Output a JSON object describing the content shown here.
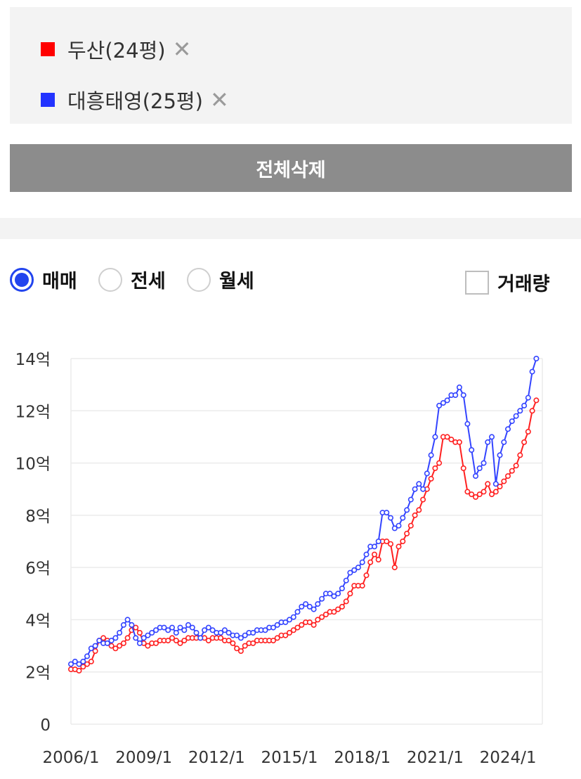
{
  "legend": {
    "items": [
      {
        "label": "두산(24평)",
        "color": "#ff0000",
        "remove_icon": "✕"
      },
      {
        "label": "대흥태영(25평)",
        "color": "#2233ff",
        "remove_icon": "✕"
      }
    ]
  },
  "delete_all_label": "전체삭제",
  "controls": {
    "radios": [
      {
        "label": "매매",
        "checked": true
      },
      {
        "label": "전세",
        "checked": false
      },
      {
        "label": "월세",
        "checked": false
      }
    ],
    "volume_checkbox": {
      "label": "거래량",
      "checked": false
    }
  },
  "chart_data": {
    "type": "line",
    "x_tick_labels": [
      "2006/1",
      "2009/1",
      "2012/1",
      "2015/1",
      "2018/1",
      "2021/1",
      "2024/1"
    ],
    "x_range": [
      "2006/1",
      "2025/6"
    ],
    "ylim": [
      0,
      14
    ],
    "y_ticks": [
      0,
      2,
      4,
      6,
      8,
      10,
      12,
      14
    ],
    "y_tick_labels": [
      "0",
      "2억",
      "4억",
      "6억",
      "8억",
      "10억",
      "12억",
      "14억"
    ],
    "grid": true,
    "series": [
      {
        "name": "두산(24평)",
        "color": "#ff2020",
        "points": [
          [
            "2006/1",
            2.1
          ],
          [
            "2006/3",
            2.1
          ],
          [
            "2006/5",
            2.05
          ],
          [
            "2006/7",
            2.2
          ],
          [
            "2006/9",
            2.3
          ],
          [
            "2006/11",
            2.4
          ],
          [
            "2007/1",
            2.8
          ],
          [
            "2007/3",
            3.2
          ],
          [
            "2007/5",
            3.3
          ],
          [
            "2007/7",
            3.2
          ],
          [
            "2007/9",
            3.0
          ],
          [
            "2007/11",
            2.9
          ],
          [
            "2008/1",
            3.0
          ],
          [
            "2008/3",
            3.1
          ],
          [
            "2008/5",
            3.3
          ],
          [
            "2008/7",
            3.6
          ],
          [
            "2008/9",
            3.7
          ],
          [
            "2008/11",
            3.5
          ],
          [
            "2009/1",
            3.1
          ],
          [
            "2009/3",
            3.0
          ],
          [
            "2009/5",
            3.1
          ],
          [
            "2009/7",
            3.1
          ],
          [
            "2009/9",
            3.2
          ],
          [
            "2009/11",
            3.2
          ],
          [
            "2010/1",
            3.2
          ],
          [
            "2010/3",
            3.3
          ],
          [
            "2010/5",
            3.2
          ],
          [
            "2010/7",
            3.1
          ],
          [
            "2010/9",
            3.2
          ],
          [
            "2010/11",
            3.3
          ],
          [
            "2011/1",
            3.3
          ],
          [
            "2011/3",
            3.3
          ],
          [
            "2011/5",
            3.3
          ],
          [
            "2011/7",
            3.3
          ],
          [
            "2011/9",
            3.2
          ],
          [
            "2011/11",
            3.3
          ],
          [
            "2012/1",
            3.3
          ],
          [
            "2012/3",
            3.3
          ],
          [
            "2012/5",
            3.2
          ],
          [
            "2012/7",
            3.2
          ],
          [
            "2012/9",
            3.1
          ],
          [
            "2012/11",
            2.9
          ],
          [
            "2013/1",
            2.8
          ],
          [
            "2013/3",
            3.0
          ],
          [
            "2013/5",
            3.1
          ],
          [
            "2013/7",
            3.1
          ],
          [
            "2013/9",
            3.2
          ],
          [
            "2013/11",
            3.2
          ],
          [
            "2014/1",
            3.2
          ],
          [
            "2014/3",
            3.2
          ],
          [
            "2014/5",
            3.2
          ],
          [
            "2014/7",
            3.3
          ],
          [
            "2014/9",
            3.4
          ],
          [
            "2014/11",
            3.4
          ],
          [
            "2015/1",
            3.5
          ],
          [
            "2015/3",
            3.6
          ],
          [
            "2015/5",
            3.7
          ],
          [
            "2015/7",
            3.8
          ],
          [
            "2015/9",
            3.9
          ],
          [
            "2015/11",
            3.9
          ],
          [
            "2016/1",
            3.8
          ],
          [
            "2016/3",
            4.0
          ],
          [
            "2016/5",
            4.1
          ],
          [
            "2016/7",
            4.2
          ],
          [
            "2016/9",
            4.3
          ],
          [
            "2016/11",
            4.3
          ],
          [
            "2017/1",
            4.4
          ],
          [
            "2017/3",
            4.5
          ],
          [
            "2017/5",
            4.7
          ],
          [
            "2017/7",
            5.0
          ],
          [
            "2017/9",
            5.3
          ],
          [
            "2017/11",
            5.3
          ],
          [
            "2018/1",
            5.3
          ],
          [
            "2018/3",
            5.7
          ],
          [
            "2018/5",
            6.2
          ],
          [
            "2018/7",
            6.5
          ],
          [
            "2018/9",
            6.3
          ],
          [
            "2018/11",
            7.0
          ],
          [
            "2019/1",
            7.0
          ],
          [
            "2019/3",
            6.9
          ],
          [
            "2019/5",
            6.0
          ],
          [
            "2019/7",
            6.8
          ],
          [
            "2019/9",
            7.0
          ],
          [
            "2019/11",
            7.3
          ],
          [
            "2020/1",
            7.6
          ],
          [
            "2020/3",
            8.0
          ],
          [
            "2020/5",
            8.2
          ],
          [
            "2020/7",
            8.6
          ],
          [
            "2020/9",
            9.0
          ],
          [
            "2020/11",
            9.4
          ],
          [
            "2021/1",
            9.8
          ],
          [
            "2021/3",
            10.0
          ],
          [
            "2021/5",
            11.0
          ],
          [
            "2021/7",
            11.0
          ],
          [
            "2021/9",
            10.9
          ],
          [
            "2021/11",
            10.8
          ],
          [
            "2022/1",
            10.8
          ],
          [
            "2022/3",
            9.8
          ],
          [
            "2022/5",
            8.9
          ],
          [
            "2022/7",
            8.8
          ],
          [
            "2022/9",
            8.7
          ],
          [
            "2022/11",
            8.8
          ],
          [
            "2023/1",
            8.9
          ],
          [
            "2023/3",
            9.2
          ],
          [
            "2023/5",
            8.8
          ],
          [
            "2023/7",
            8.9
          ],
          [
            "2023/9",
            9.1
          ],
          [
            "2023/11",
            9.3
          ],
          [
            "2024/1",
            9.5
          ],
          [
            "2024/3",
            9.7
          ],
          [
            "2024/5",
            9.9
          ],
          [
            "2024/7",
            10.3
          ],
          [
            "2024/9",
            10.8
          ],
          [
            "2024/11",
            11.2
          ],
          [
            "2025/1",
            12.0
          ],
          [
            "2025/3",
            12.4
          ]
        ]
      },
      {
        "name": "대흥태영(25평)",
        "color": "#3344ff",
        "points": [
          [
            "2006/1",
            2.3
          ],
          [
            "2006/3",
            2.4
          ],
          [
            "2006/5",
            2.3
          ],
          [
            "2006/7",
            2.4
          ],
          [
            "2006/9",
            2.6
          ],
          [
            "2006/11",
            2.9
          ],
          [
            "2007/1",
            3.0
          ],
          [
            "2007/3",
            3.2
          ],
          [
            "2007/5",
            3.1
          ],
          [
            "2007/7",
            3.1
          ],
          [
            "2007/9",
            3.2
          ],
          [
            "2007/11",
            3.3
          ],
          [
            "2008/1",
            3.5
          ],
          [
            "2008/3",
            3.8
          ],
          [
            "2008/5",
            4.0
          ],
          [
            "2008/7",
            3.8
          ],
          [
            "2008/9",
            3.3
          ],
          [
            "2008/11",
            3.1
          ],
          [
            "2009/1",
            3.3
          ],
          [
            "2009/3",
            3.4
          ],
          [
            "2009/5",
            3.5
          ],
          [
            "2009/7",
            3.6
          ],
          [
            "2009/9",
            3.7
          ],
          [
            "2009/11",
            3.7
          ],
          [
            "2010/1",
            3.6
          ],
          [
            "2010/3",
            3.7
          ],
          [
            "2010/5",
            3.5
          ],
          [
            "2010/7",
            3.7
          ],
          [
            "2010/9",
            3.6
          ],
          [
            "2010/11",
            3.8
          ],
          [
            "2011/1",
            3.7
          ],
          [
            "2011/3",
            3.5
          ],
          [
            "2011/5",
            3.3
          ],
          [
            "2011/7",
            3.6
          ],
          [
            "2011/9",
            3.7
          ],
          [
            "2011/11",
            3.6
          ],
          [
            "2012/1",
            3.5
          ],
          [
            "2012/3",
            3.5
          ],
          [
            "2012/5",
            3.6
          ],
          [
            "2012/7",
            3.5
          ],
          [
            "2012/9",
            3.4
          ],
          [
            "2012/11",
            3.4
          ],
          [
            "2013/1",
            3.3
          ],
          [
            "2013/3",
            3.4
          ],
          [
            "2013/5",
            3.5
          ],
          [
            "2013/7",
            3.5
          ],
          [
            "2013/9",
            3.6
          ],
          [
            "2013/11",
            3.6
          ],
          [
            "2014/1",
            3.6
          ],
          [
            "2014/3",
            3.7
          ],
          [
            "2014/5",
            3.7
          ],
          [
            "2014/7",
            3.8
          ],
          [
            "2014/9",
            3.9
          ],
          [
            "2014/11",
            3.9
          ],
          [
            "2015/1",
            4.0
          ],
          [
            "2015/3",
            4.1
          ],
          [
            "2015/5",
            4.3
          ],
          [
            "2015/7",
            4.5
          ],
          [
            "2015/9",
            4.6
          ],
          [
            "2015/11",
            4.5
          ],
          [
            "2016/1",
            4.4
          ],
          [
            "2016/3",
            4.6
          ],
          [
            "2016/5",
            4.8
          ],
          [
            "2016/7",
            5.0
          ],
          [
            "2016/9",
            5.0
          ],
          [
            "2016/11",
            4.9
          ],
          [
            "2017/1",
            5.0
          ],
          [
            "2017/3",
            5.2
          ],
          [
            "2017/5",
            5.5
          ],
          [
            "2017/7",
            5.8
          ],
          [
            "2017/9",
            5.9
          ],
          [
            "2017/11",
            6.0
          ],
          [
            "2018/1",
            6.2
          ],
          [
            "2018/3",
            6.5
          ],
          [
            "2018/5",
            6.8
          ],
          [
            "2018/7",
            6.8
          ],
          [
            "2018/9",
            7.0
          ],
          [
            "2018/11",
            8.1
          ],
          [
            "2019/1",
            8.1
          ],
          [
            "2019/3",
            7.9
          ],
          [
            "2019/5",
            7.5
          ],
          [
            "2019/7",
            7.6
          ],
          [
            "2019/9",
            7.9
          ],
          [
            "2019/11",
            8.2
          ],
          [
            "2020/1",
            8.6
          ],
          [
            "2020/3",
            9.0
          ],
          [
            "2020/5",
            9.2
          ],
          [
            "2020/7",
            9.0
          ],
          [
            "2020/9",
            9.6
          ],
          [
            "2020/11",
            10.3
          ],
          [
            "2021/1",
            11.0
          ],
          [
            "2021/3",
            12.2
          ],
          [
            "2021/5",
            12.3
          ],
          [
            "2021/7",
            12.4
          ],
          [
            "2021/9",
            12.6
          ],
          [
            "2021/11",
            12.6
          ],
          [
            "2022/1",
            12.9
          ],
          [
            "2022/3",
            12.6
          ],
          [
            "2022/5",
            11.5
          ],
          [
            "2022/7",
            10.5
          ],
          [
            "2022/9",
            9.5
          ],
          [
            "2022/11",
            9.8
          ],
          [
            "2023/1",
            10.0
          ],
          [
            "2023/3",
            10.8
          ],
          [
            "2023/5",
            11.0
          ],
          [
            "2023/7",
            9.2
          ],
          [
            "2023/9",
            10.3
          ],
          [
            "2023/11",
            10.8
          ],
          [
            "2024/1",
            11.3
          ],
          [
            "2024/3",
            11.6
          ],
          [
            "2024/5",
            11.8
          ],
          [
            "2024/7",
            12.0
          ],
          [
            "2024/9",
            12.2
          ],
          [
            "2024/11",
            12.5
          ],
          [
            "2025/1",
            13.5
          ],
          [
            "2025/3",
            14.0
          ]
        ]
      }
    ]
  }
}
